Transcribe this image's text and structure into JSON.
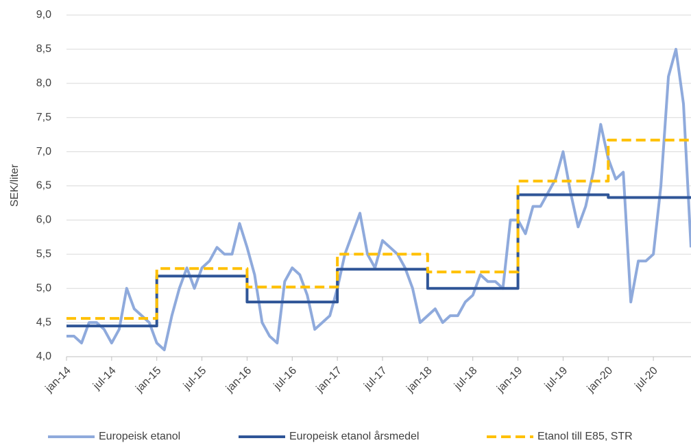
{
  "chart_data": {
    "type": "line",
    "y_label": "SEK/liter",
    "categories": [
      "jan-14",
      null,
      null,
      null,
      null,
      null,
      "jul-14",
      null,
      null,
      null,
      null,
      null,
      "jan-15",
      null,
      null,
      null,
      null,
      null,
      "jul-15",
      null,
      null,
      null,
      null,
      null,
      "jan-16",
      null,
      null,
      null,
      null,
      null,
      "jul-16",
      null,
      null,
      null,
      null,
      null,
      "jan-17",
      null,
      null,
      null,
      null,
      null,
      "jul-17",
      null,
      null,
      null,
      null,
      null,
      "jan-18",
      null,
      null,
      null,
      null,
      null,
      "jul-18",
      null,
      null,
      null,
      null,
      null,
      "jan-19",
      null,
      null,
      null,
      null,
      null,
      "jul-19",
      null,
      null,
      null,
      null,
      null,
      "jan-20",
      null,
      null,
      null,
      null,
      null,
      "jul-20",
      null,
      null,
      null,
      null,
      null
    ],
    "series": [
      {
        "name": "Europeisk etanol",
        "color": "#8faadc",
        "dash": false,
        "step": false,
        "values": [
          4.3,
          4.3,
          4.2,
          4.5,
          4.5,
          4.4,
          4.2,
          4.4,
          5.0,
          4.7,
          4.6,
          4.5,
          4.2,
          4.1,
          4.6,
          5.0,
          5.3,
          5.0,
          5.3,
          5.4,
          5.6,
          5.5,
          5.5,
          5.95,
          5.6,
          5.2,
          4.5,
          4.3,
          4.2,
          5.1,
          5.3,
          5.2,
          4.9,
          4.4,
          4.5,
          4.6,
          5.0,
          5.5,
          5.8,
          6.1,
          5.5,
          5.3,
          5.7,
          5.6,
          5.5,
          5.3,
          5.0,
          4.5,
          4.6,
          4.7,
          4.5,
          4.6,
          4.6,
          4.8,
          4.9,
          5.2,
          5.1,
          5.1,
          5.0,
          6.0,
          6.0,
          5.8,
          6.2,
          6.2,
          6.4,
          6.6,
          7.0,
          6.4,
          5.9,
          6.2,
          6.7,
          7.4,
          6.9,
          6.6,
          6.7,
          4.8,
          5.4,
          5.4,
          5.5,
          6.5,
          8.1,
          8.5,
          7.7,
          5.6
        ]
      },
      {
        "name": "Europeisk etanol årsmedel",
        "color": "#2f5597",
        "dash": false,
        "step": true,
        "values": [
          4.45,
          4.45,
          4.45,
          4.45,
          4.45,
          4.45,
          4.45,
          4.45,
          4.45,
          4.45,
          4.45,
          4.45,
          5.18,
          5.18,
          5.18,
          5.18,
          5.18,
          5.18,
          5.18,
          5.18,
          5.18,
          5.18,
          5.18,
          5.18,
          4.8,
          4.8,
          4.8,
          4.8,
          4.8,
          4.8,
          4.8,
          4.8,
          4.8,
          4.8,
          4.8,
          4.8,
          5.28,
          5.28,
          5.28,
          5.28,
          5.28,
          5.28,
          5.28,
          5.28,
          5.28,
          5.28,
          5.28,
          5.28,
          5.0,
          5.0,
          5.0,
          5.0,
          5.0,
          5.0,
          5.0,
          5.0,
          5.0,
          5.0,
          5.0,
          5.0,
          6.37,
          6.37,
          6.37,
          6.37,
          6.37,
          6.37,
          6.37,
          6.37,
          6.37,
          6.37,
          6.37,
          6.37,
          6.33,
          6.33,
          6.33,
          6.33,
          6.33,
          6.33,
          6.33,
          6.33,
          6.33,
          6.33,
          6.33,
          6.33
        ]
      },
      {
        "name": "Etanol till E85, STR",
        "color": "#ffc000",
        "dash": true,
        "step": true,
        "values": [
          4.56,
          4.56,
          4.56,
          4.56,
          4.56,
          4.56,
          4.56,
          4.56,
          4.56,
          4.56,
          4.56,
          4.56,
          5.29,
          5.29,
          5.29,
          5.29,
          5.29,
          5.29,
          5.29,
          5.29,
          5.29,
          5.29,
          5.29,
          5.29,
          5.02,
          5.02,
          5.02,
          5.02,
          5.02,
          5.02,
          5.02,
          5.02,
          5.02,
          5.02,
          5.02,
          5.02,
          5.5,
          5.5,
          5.5,
          5.5,
          5.5,
          5.5,
          5.5,
          5.5,
          5.5,
          5.5,
          5.5,
          5.5,
          5.24,
          5.24,
          5.24,
          5.24,
          5.24,
          5.24,
          5.24,
          5.24,
          5.24,
          5.24,
          5.24,
          5.24,
          6.57,
          6.57,
          6.57,
          6.57,
          6.57,
          6.57,
          6.57,
          6.57,
          6.57,
          6.57,
          6.57,
          6.57,
          7.17,
          7.17,
          7.17,
          7.17,
          7.17,
          7.17,
          7.17,
          7.17,
          7.17,
          7.17,
          7.17,
          7.17
        ]
      }
    ],
    "ylim": [
      4,
      9
    ],
    "yticks": [
      {
        "value": 4,
        "label": "4,0"
      },
      {
        "value": 4.5,
        "label": "4,5"
      },
      {
        "value": 5,
        "label": "5,0"
      },
      {
        "value": 5.5,
        "label": "5,5"
      },
      {
        "value": 6,
        "label": "6,0"
      },
      {
        "value": 6.5,
        "label": "6,5"
      },
      {
        "value": 7,
        "label": "7,0"
      },
      {
        "value": 7.5,
        "label": "7,5"
      },
      {
        "value": 8,
        "label": "8,0"
      },
      {
        "value": 8.5,
        "label": "8,5"
      },
      {
        "value": 9,
        "label": "9,0"
      }
    ],
    "grid": true,
    "legend": "bottom"
  }
}
